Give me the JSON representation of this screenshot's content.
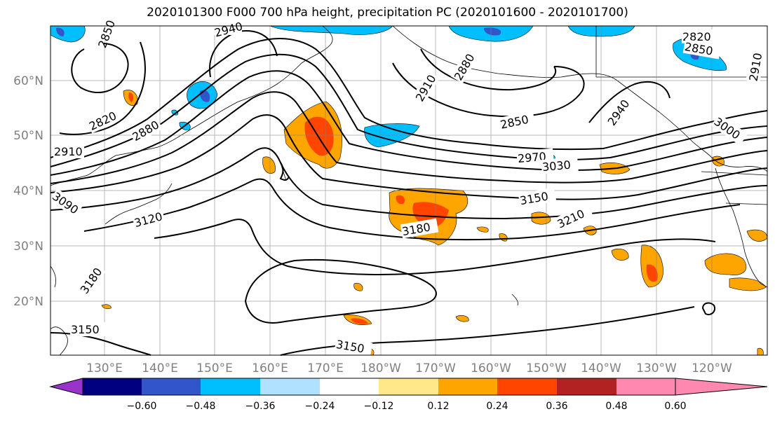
{
  "title": "2020101300 F000 700 hPa height, precipitation PC (2020101600 - 2020101700)",
  "latitude_labels": [
    "60°N",
    "50°N",
    "40°N",
    "30°N",
    "20°N"
  ],
  "longitude_labels": [
    "130°E",
    "140°E",
    "150°E",
    "160°E",
    "170°E",
    "180°W",
    "170°W",
    "160°W",
    "150°W",
    "140°W",
    "130°W",
    "120°W"
  ],
  "contour_labels": [
    "2850",
    "2940",
    "2820",
    "2880",
    "2910",
    "3090",
    "3120",
    "3180",
    "3150",
    "2910",
    "2880",
    "2850",
    "2940",
    "2970",
    "3030",
    "3150",
    "3180",
    "3210",
    "3000",
    "2820",
    "2850",
    "2910",
    "3150"
  ],
  "colorbar": {
    "ticks": [
      "−0.60",
      "−0.48",
      "−0.36",
      "−0.24",
      "−0.12",
      "0.12",
      "0.24",
      "0.36",
      "0.48",
      "0.60"
    ],
    "colors": [
      "#9933cc",
      "#000080",
      "#3355cc",
      "#00bfff",
      "#b0e2ff",
      "#ffffff",
      "#ffe88a",
      "#ffa500",
      "#ff4500",
      "#b22222",
      "#ff88b0"
    ]
  }
}
